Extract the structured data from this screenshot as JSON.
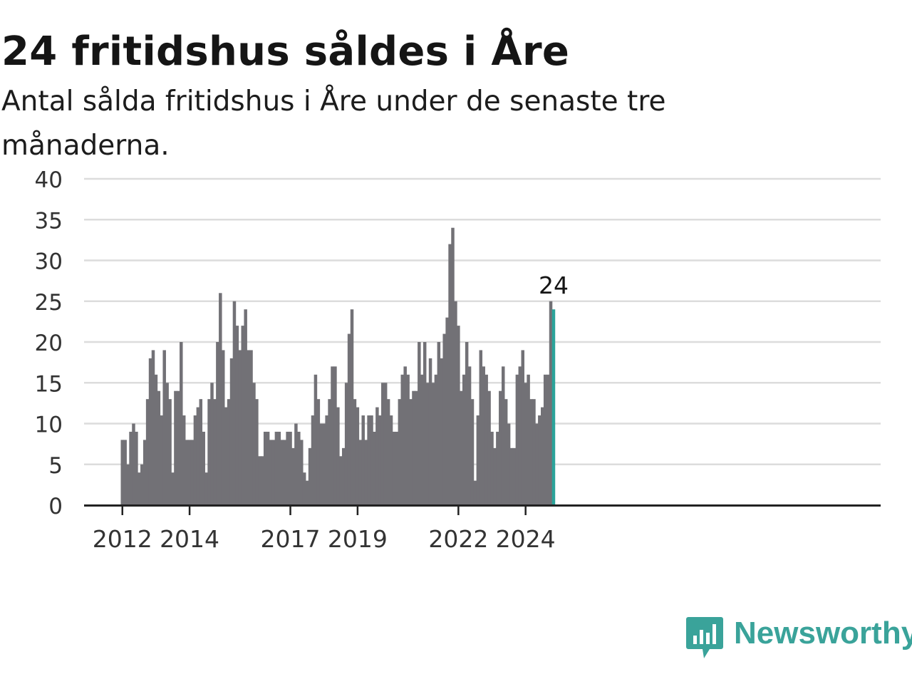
{
  "header": {
    "title": "24 fritidshus såldes i Åre",
    "subtitle": "Antal sålda fritidshus i Åre under de senaste tre månaderna."
  },
  "brand": {
    "name": "Newsworthy",
    "color": "#3aa39a"
  },
  "colors": {
    "bar": "#727176",
    "highlight": "#2ba39a",
    "grid": "#dcdcdc",
    "axis": "#222222"
  },
  "chart_data": {
    "type": "bar",
    "title": "24 fritidshus såldes i Åre",
    "subtitle": "Antal sålda fritidshus i Åre under de senaste tre månaderna.",
    "x_start": "2012-01",
    "x_end": "2024-10",
    "values": [
      8,
      8,
      5,
      9,
      10,
      9,
      4,
      5,
      8,
      13,
      18,
      19,
      16,
      14,
      11,
      19,
      15,
      13,
      4,
      14,
      14,
      20,
      11,
      8,
      8,
      8,
      11,
      12,
      13,
      9,
      4,
      13,
      15,
      13,
      20,
      26,
      19,
      12,
      13,
      18,
      25,
      22,
      19,
      22,
      24,
      19,
      19,
      15,
      13,
      6,
      6,
      9,
      9,
      8,
      8,
      9,
      9,
      8,
      8,
      9,
      9,
      7,
      10,
      9,
      8,
      4,
      3,
      7,
      11,
      16,
      13,
      10,
      10,
      11,
      13,
      17,
      17,
      12,
      6,
      7,
      15,
      21,
      24,
      13,
      12,
      8,
      11,
      8,
      11,
      11,
      9,
      12,
      11,
      15,
      15,
      13,
      11,
      9,
      9,
      13,
      16,
      17,
      16,
      13,
      14,
      14,
      20,
      16,
      20,
      15,
      18,
      15,
      16,
      20,
      18,
      21,
      23,
      32,
      34,
      25,
      22,
      14,
      16,
      20,
      17,
      13,
      3,
      11,
      19,
      17,
      16,
      14,
      9,
      7,
      9,
      14,
      17,
      13,
      10,
      7,
      7,
      16,
      17,
      19,
      15,
      16,
      13,
      13,
      10,
      11,
      12,
      16,
      16,
      25,
      24
    ],
    "highlight_last": true,
    "annotation": "24",
    "xticks": [
      "2012",
      "2014",
      "2017",
      "2019",
      "2022",
      "2024"
    ],
    "xtick_positions": [
      "2012-01",
      "2014-01",
      "2017-01",
      "2019-01",
      "2022-01",
      "2024-01"
    ],
    "yticks": [
      "0",
      "5",
      "10",
      "15",
      "20",
      "25",
      "30",
      "35",
      "40"
    ],
    "ylim": [
      0,
      40
    ],
    "grid": true,
    "legend": "none"
  }
}
